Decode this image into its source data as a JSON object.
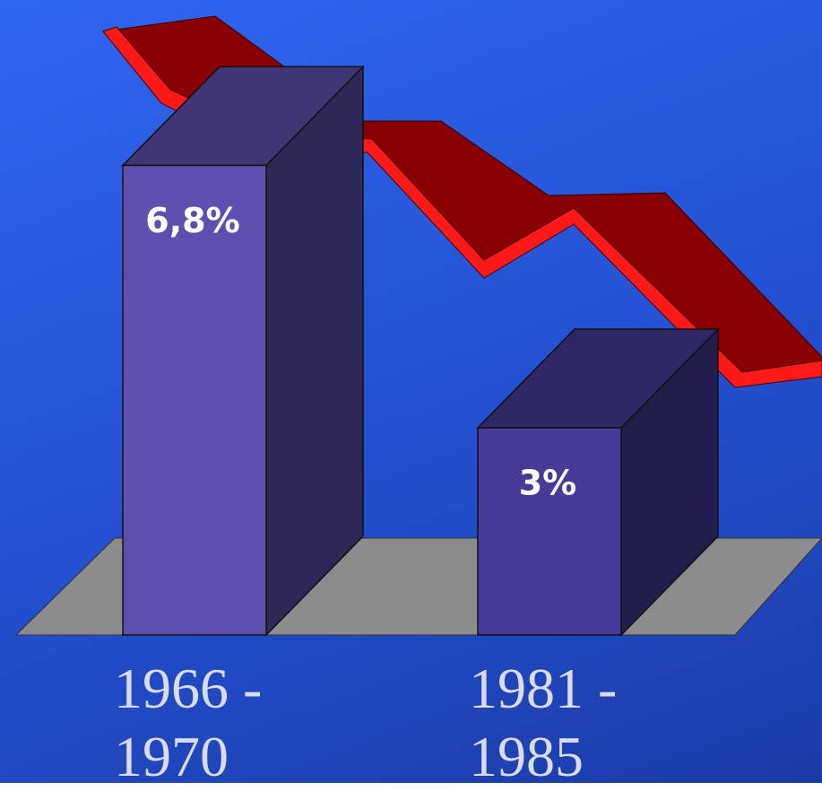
{
  "chart_data": {
    "type": "bar",
    "categories": [
      "1966 - 1970",
      "1981 - 1985"
    ],
    "values": [
      6.8,
      3
    ],
    "value_labels": [
      "6,8%",
      "3%"
    ],
    "colors": [
      "#5e4fae",
      "#463a96"
    ]
  }
}
